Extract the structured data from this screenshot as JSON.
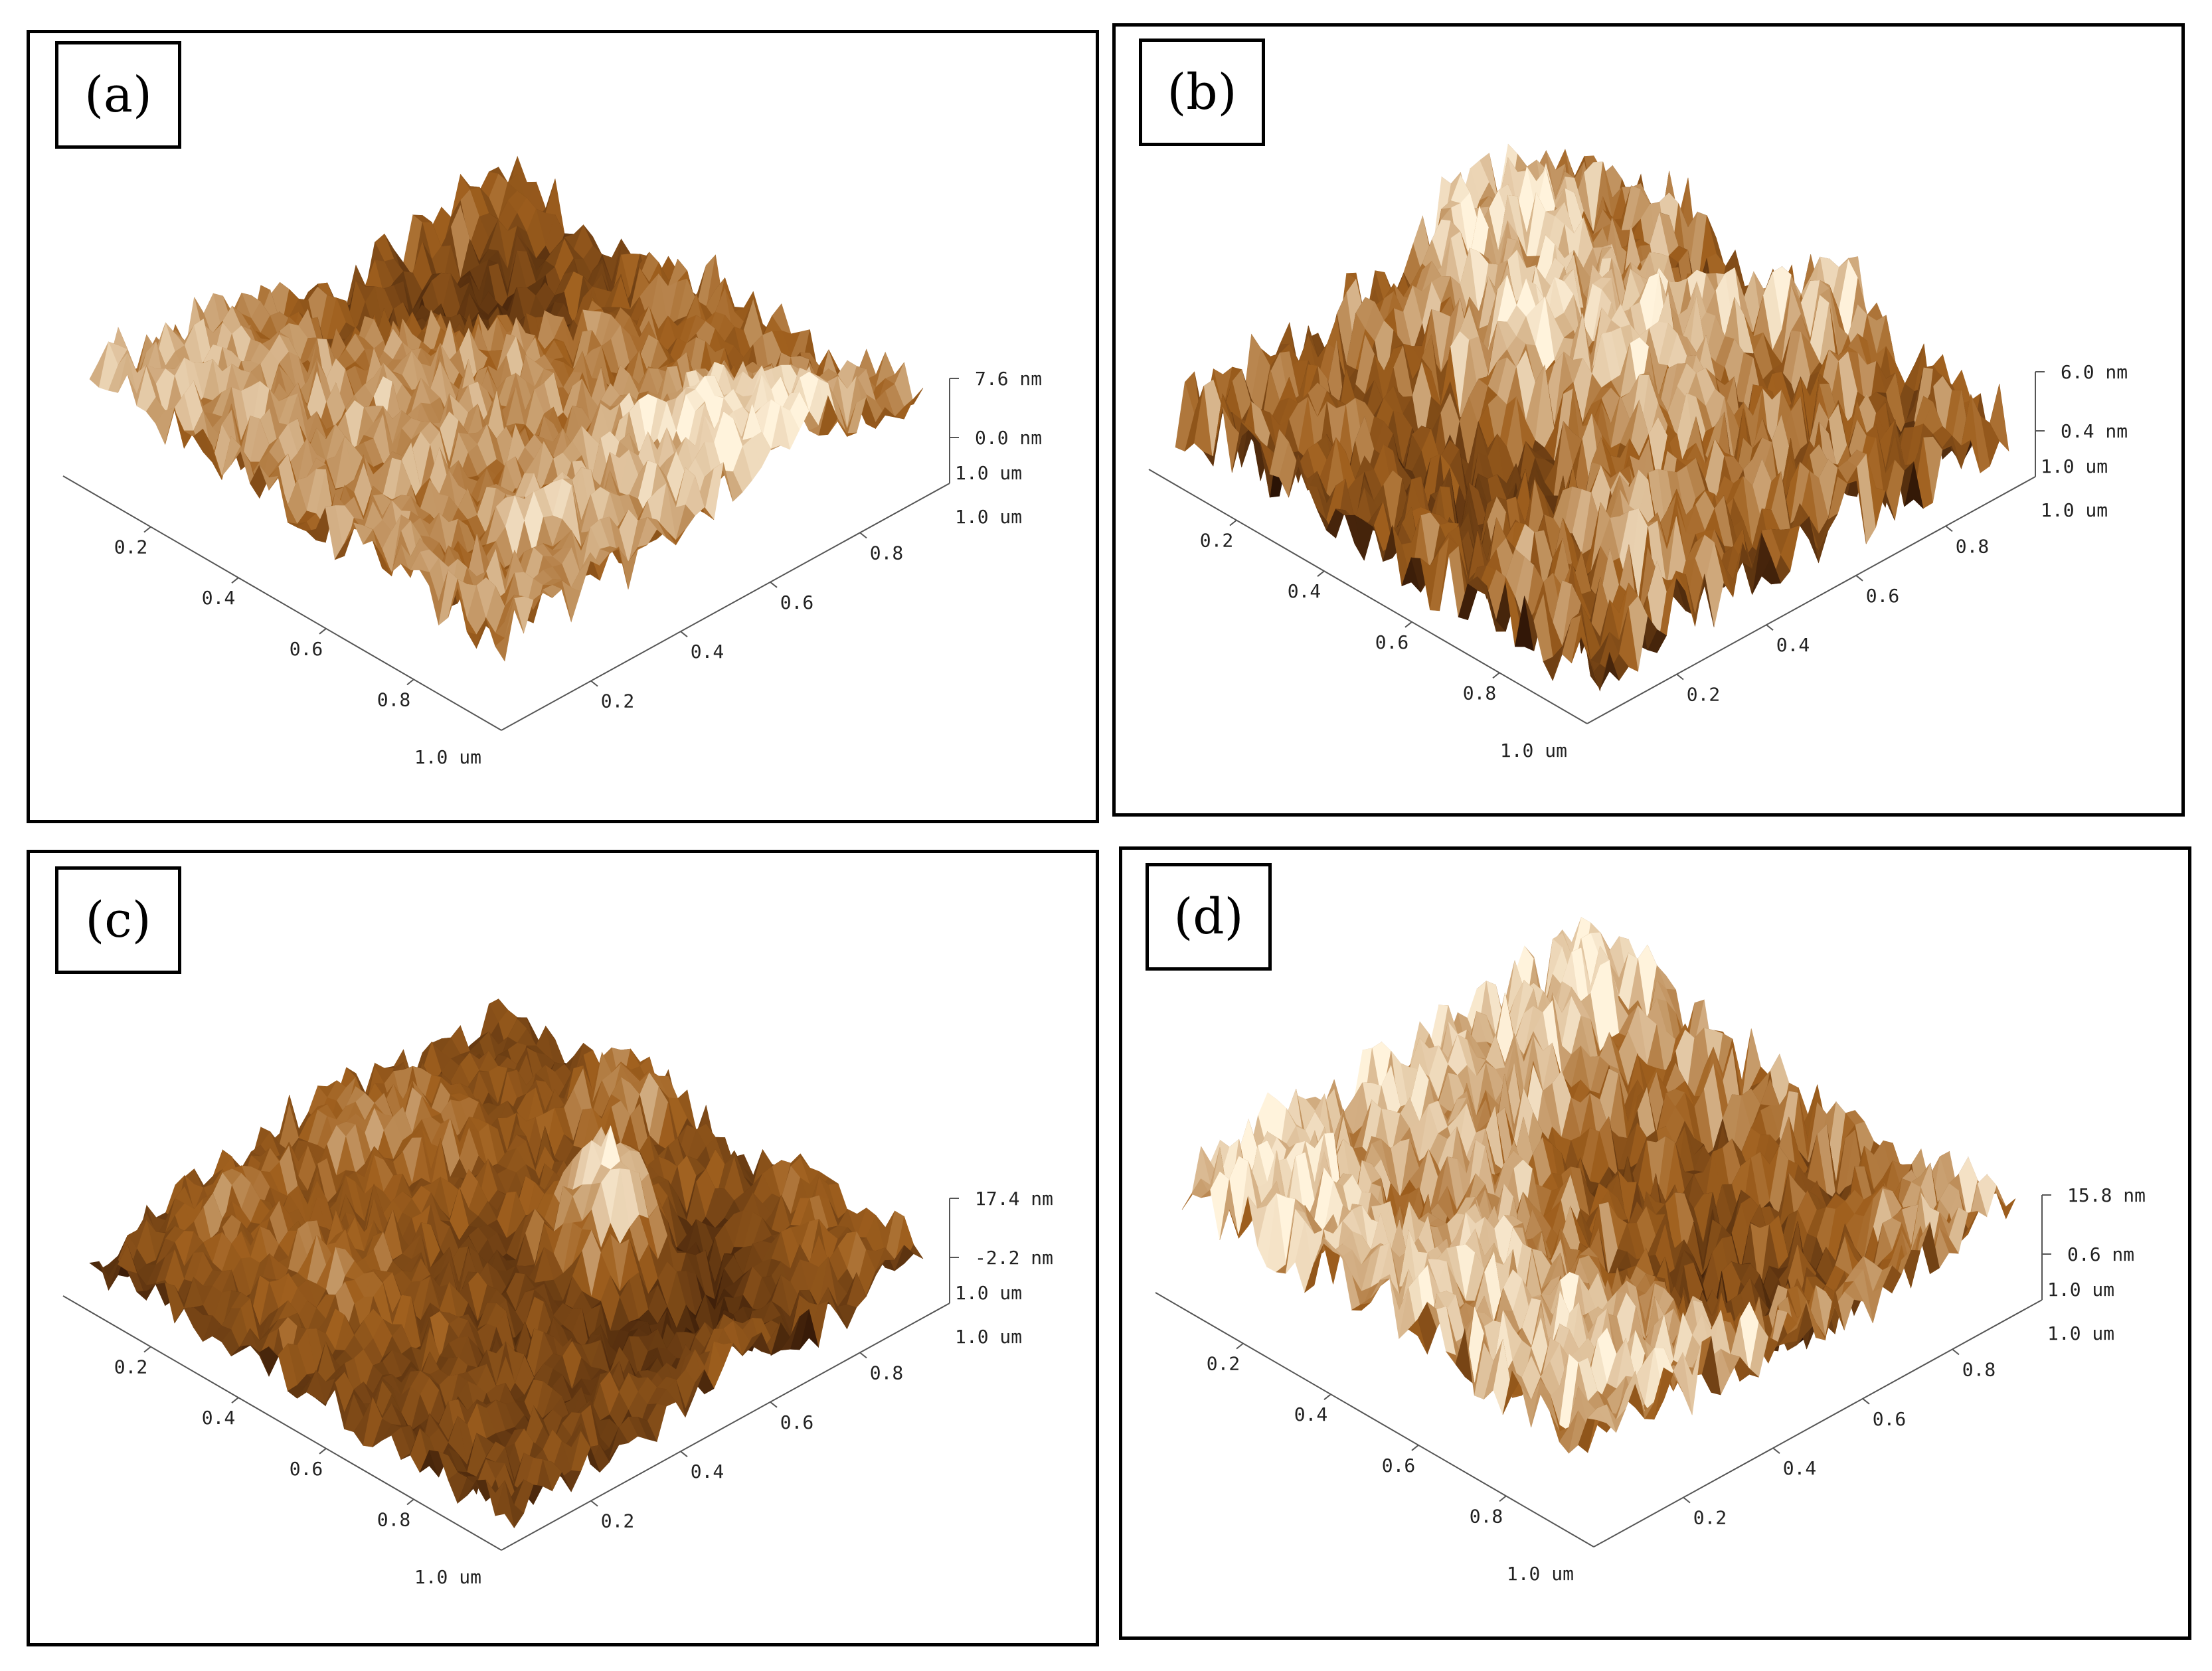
{
  "panels": [
    {
      "label": "(a)",
      "z_top": "7.6 nm",
      "z_mid": "0.0 nm",
      "z_base": "1.0 um",
      "right_axis_end": "1.0 um",
      "left_axis_end": "1.0 um",
      "left_ticks": [
        "0.2",
        "0.4",
        "0.6",
        "0.8"
      ],
      "right_ticks": [
        "0.2",
        "0.4",
        "0.6",
        "0.8"
      ],
      "roughness": 0.9,
      "seed": 11
    },
    {
      "label": "(b)",
      "z_top": "6.0 nm",
      "z_mid": "0.4 nm",
      "z_base": "1.0 um",
      "right_axis_end": "1.0 um",
      "left_axis_end": "1.0 um",
      "left_ticks": [
        "0.2",
        "0.4",
        "0.6",
        "0.8"
      ],
      "right_ticks": [
        "0.2",
        "0.4",
        "0.6",
        "0.8"
      ],
      "roughness": 0.75,
      "seed": 23
    },
    {
      "label": "(c)",
      "z_top": "17.4 nm",
      "z_mid": "-2.2 nm",
      "z_base": "1.0 um",
      "right_axis_end": "1.0 um",
      "left_axis_end": "1.0 um",
      "left_ticks": [
        "0.2",
        "0.4",
        "0.6",
        "0.8"
      ],
      "right_ticks": [
        "0.2",
        "0.4",
        "0.6",
        "0.8"
      ],
      "roughness": 0.6,
      "seed": 37
    },
    {
      "label": "(d)",
      "z_top": "15.8 nm",
      "z_mid": "0.6 nm",
      "z_base": "1.0 um",
      "right_axis_end": "1.0 um",
      "left_axis_end": "1.0 um",
      "left_ticks": [
        "0.2",
        "0.4",
        "0.6",
        "0.8"
      ],
      "right_ticks": [
        "0.2",
        "0.4",
        "0.6",
        "0.8"
      ],
      "roughness": 0.7,
      "seed": 53
    }
  ],
  "colors": {
    "surface_dark": "#2a1205",
    "surface_mid": "#a0601e",
    "surface_light": "#fff3dc"
  }
}
